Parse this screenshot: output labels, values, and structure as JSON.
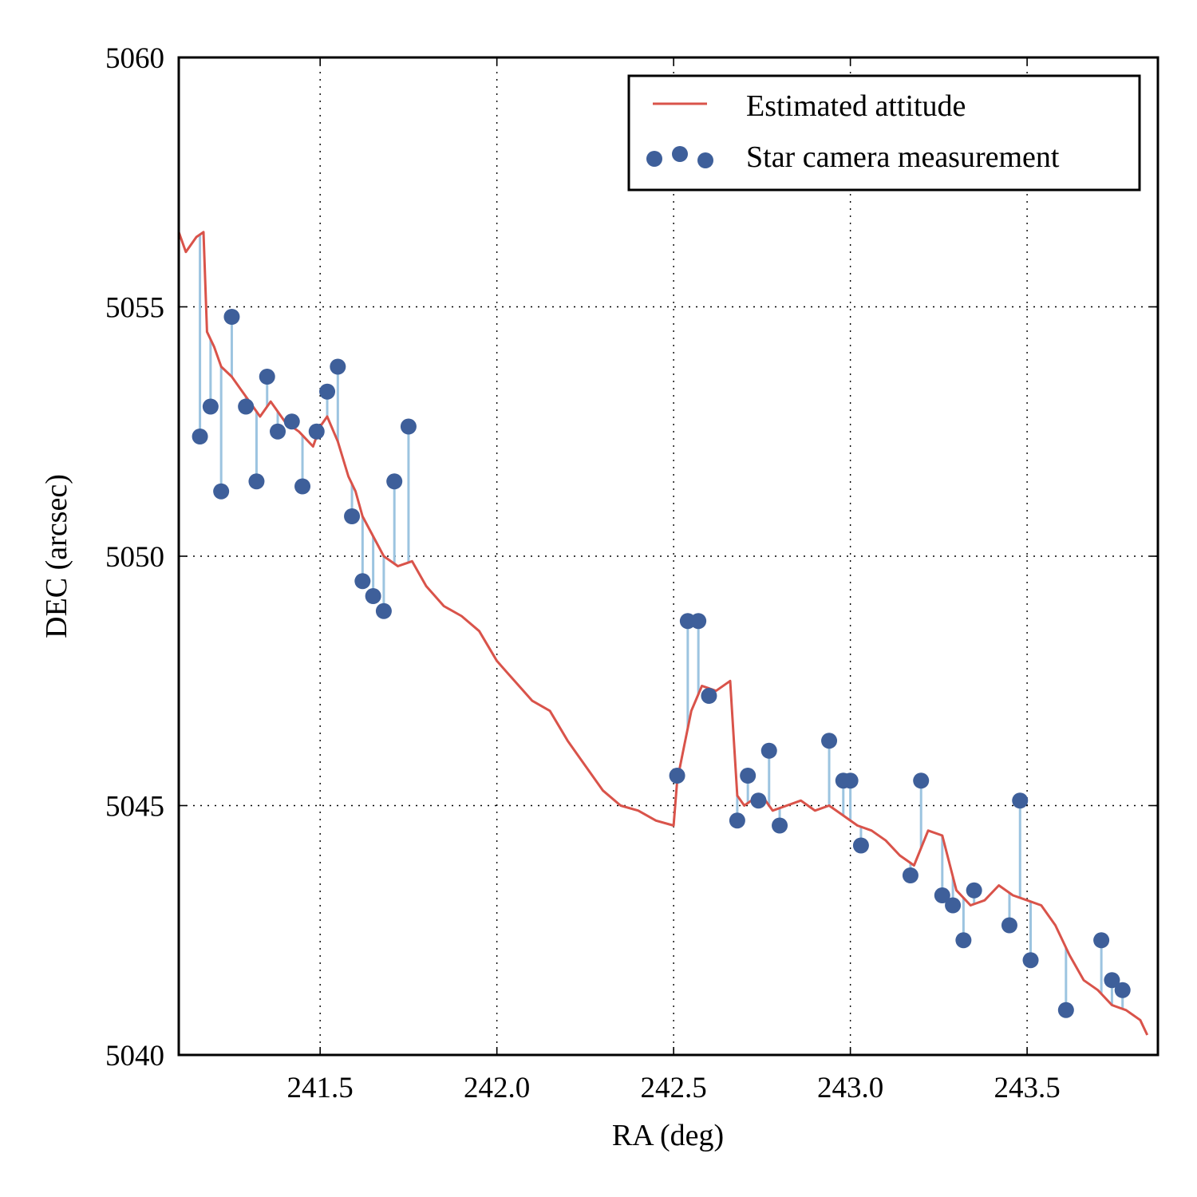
{
  "chart_data": {
    "type": "line",
    "title": "",
    "xlabel": "RA (deg)",
    "ylabel": "DEC (arcsec)",
    "xlim": [
      241.1,
      243.87
    ],
    "ylim": [
      5040,
      5060
    ],
    "xticks": [
      241.5,
      242.0,
      242.5,
      243.0,
      243.5
    ],
    "xtick_labels": [
      "241.5",
      "242.0",
      "242.5",
      "243.0",
      "243.5"
    ],
    "yticks": [
      5040,
      5045,
      5050,
      5055,
      5060
    ],
    "ytick_labels": [
      "5040",
      "5045",
      "5050",
      "5055",
      "5060"
    ],
    "grid": true,
    "legend_position": "top-right",
    "colors": {
      "estimated": "#d9534a",
      "measurement": "#3e5f9a",
      "residual": "#9cc4e0"
    },
    "series": [
      {
        "name": "Estimated attitude",
        "kind": "line",
        "x": [
          241.1,
          241.12,
          241.15,
          241.17,
          241.18,
          241.2,
          241.22,
          241.25,
          241.28,
          241.3,
          241.33,
          241.36,
          241.4,
          241.44,
          241.48,
          241.5,
          241.52,
          241.55,
          241.58,
          241.6,
          241.62,
          241.65,
          241.68,
          241.72,
          241.76,
          241.8,
          241.85,
          241.9,
          241.95,
          242.0,
          242.05,
          242.1,
          242.15,
          242.2,
          242.25,
          242.3,
          242.35,
          242.4,
          242.45,
          242.5,
          242.51,
          242.53,
          242.55,
          242.58,
          242.62,
          242.66,
          242.68,
          242.7,
          242.72,
          242.75,
          242.78,
          242.82,
          242.86,
          242.9,
          242.94,
          242.98,
          243.02,
          243.06,
          243.1,
          243.14,
          243.18,
          243.22,
          243.26,
          243.3,
          243.34,
          243.38,
          243.42,
          243.46,
          243.5,
          243.54,
          243.58,
          243.62,
          243.66,
          243.7,
          243.74,
          243.78,
          243.82,
          243.84
        ],
        "y": [
          5056.5,
          5056.1,
          5056.4,
          5056.5,
          5054.5,
          5054.2,
          5053.8,
          5053.6,
          5053.3,
          5053.1,
          5052.8,
          5053.1,
          5052.7,
          5052.5,
          5052.2,
          5052.6,
          5052.8,
          5052.3,
          5051.6,
          5051.3,
          5050.8,
          5050.4,
          5050.0,
          5049.8,
          5049.9,
          5049.4,
          5049.0,
          5048.8,
          5048.5,
          5047.9,
          5047.5,
          5047.1,
          5046.9,
          5046.3,
          5045.8,
          5045.3,
          5045.0,
          5044.9,
          5044.7,
          5044.6,
          5045.5,
          5046.2,
          5046.9,
          5047.4,
          5047.3,
          5047.5,
          5045.2,
          5045.0,
          5045.1,
          5045.2,
          5044.9,
          5045.0,
          5045.1,
          5044.9,
          5045.0,
          5044.8,
          5044.6,
          5044.5,
          5044.3,
          5044.0,
          5043.8,
          5044.5,
          5044.4,
          5043.3,
          5043.0,
          5043.1,
          5043.4,
          5043.2,
          5043.1,
          5043.0,
          5042.6,
          5042.0,
          5041.5,
          5041.3,
          5041.0,
          5040.9,
          5040.7,
          5040.4
        ]
      },
      {
        "name": "Star camera measurement",
        "kind": "scatter",
        "x": [
          241.16,
          241.19,
          241.22,
          241.25,
          241.29,
          241.32,
          241.35,
          241.38,
          241.42,
          241.45,
          241.49,
          241.52,
          241.55,
          241.59,
          241.62,
          241.65,
          241.68,
          241.71,
          241.75,
          242.51,
          242.54,
          242.57,
          242.6,
          242.68,
          242.71,
          242.74,
          242.77,
          242.8,
          242.94,
          242.98,
          243.0,
          243.03,
          243.17,
          243.2,
          243.26,
          243.29,
          243.32,
          243.35,
          243.45,
          243.48,
          243.51,
          243.61,
          243.71,
          243.74,
          243.77
        ],
        "y": [
          5052.4,
          5053.0,
          5051.3,
          5054.8,
          5053.0,
          5051.5,
          5053.6,
          5052.5,
          5052.7,
          5051.4,
          5052.5,
          5053.3,
          5053.8,
          5050.8,
          5049.5,
          5049.2,
          5048.9,
          5051.5,
          5052.6,
          5045.6,
          5048.7,
          5048.7,
          5047.2,
          5044.7,
          5045.6,
          5045.1,
          5046.1,
          5044.6,
          5046.3,
          5045.5,
          5045.5,
          5044.2,
          5043.6,
          5045.5,
          5043.2,
          5043.0,
          5042.3,
          5043.3,
          5042.6,
          5045.1,
          5041.9,
          5040.9,
          5042.3,
          5041.5,
          5041.3
        ]
      }
    ],
    "legend": [
      {
        "label": "Estimated attitude",
        "marker": "line"
      },
      {
        "label": "Star camera measurement",
        "marker": "dots"
      }
    ]
  }
}
